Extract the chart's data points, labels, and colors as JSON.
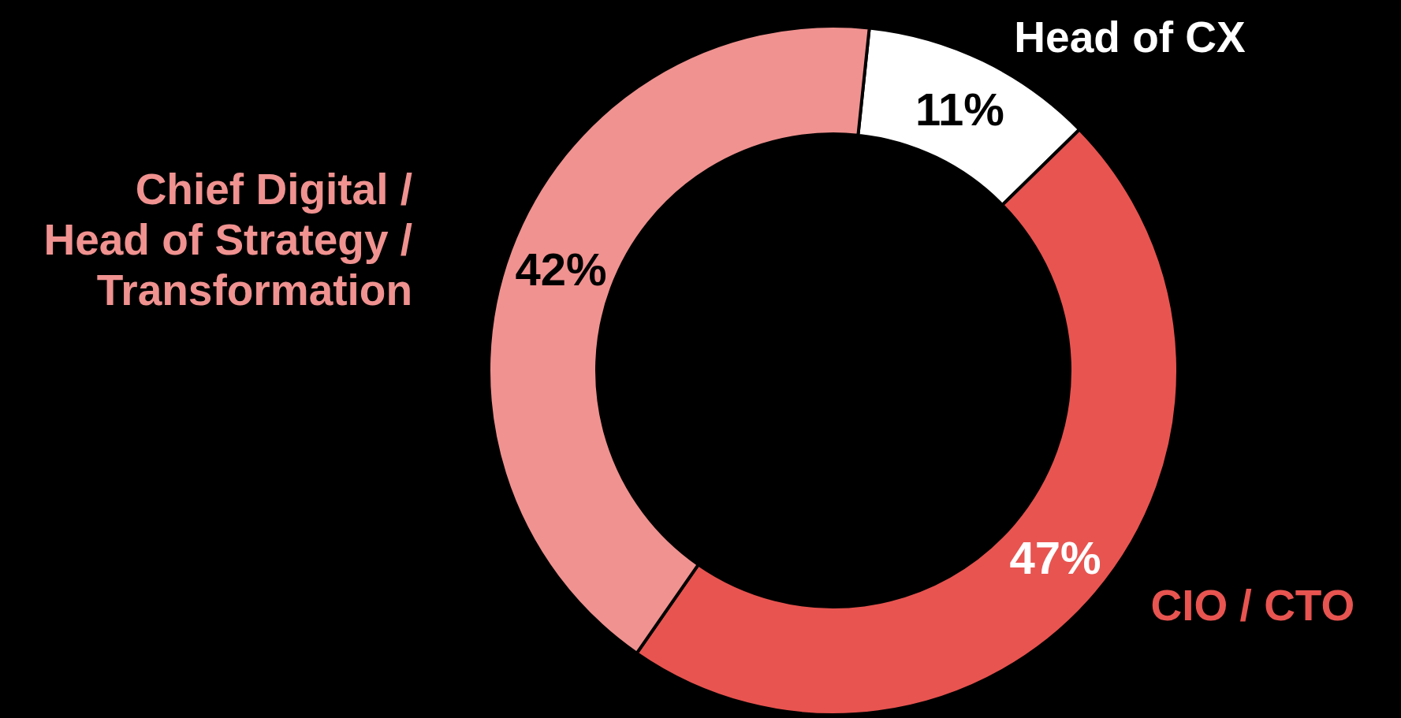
{
  "chart_data": {
    "type": "donut",
    "categories": [
      "Head of CX",
      "CIO / CTO",
      "Chief Digital /\nHead of Strategy /\nTransformation"
    ],
    "values": [
      11,
      47,
      42
    ],
    "value_labels": [
      "11%",
      "47%",
      "42%"
    ],
    "colors": [
      "#ffffff",
      "#e85450",
      "#f09290"
    ]
  }
}
